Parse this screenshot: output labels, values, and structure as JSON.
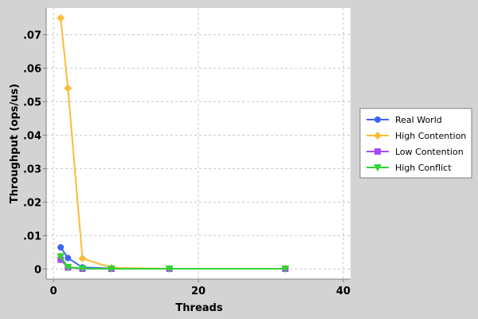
{
  "chart_data": {
    "type": "line",
    "title": "",
    "xlabel": "Threads",
    "ylabel": "Throughput (ops/us)",
    "xlim": [
      -1,
      41
    ],
    "ylim": [
      -0.003,
      0.078
    ],
    "x_ticks": [
      0,
      20,
      40
    ],
    "x_tick_labels": [
      "0",
      "20",
      "40"
    ],
    "y_ticks": [
      0,
      0.01,
      0.02,
      0.03,
      0.04,
      0.05,
      0.06,
      0.07
    ],
    "y_tick_labels": [
      "0",
      ".01",
      ".02",
      ".03",
      ".04",
      ".05",
      ".06",
      ".07"
    ],
    "grid": true,
    "legend_position": "right",
    "x": [
      1,
      2,
      4,
      8,
      16,
      32
    ],
    "series": [
      {
        "name": "Real World",
        "color": "#3d64f5",
        "marker": "circle",
        "values": [
          0.0065,
          0.0033,
          0.0005,
          0.0002,
          0.0001,
          0.0001
        ]
      },
      {
        "name": "High Contention",
        "color": "#fbbc39",
        "marker": "diamond",
        "values": [
          0.075,
          0.054,
          0.0032,
          0.0004,
          0.0001,
          0.0001
        ]
      },
      {
        "name": "Low Contention",
        "color": "#a54cf3",
        "marker": "square",
        "values": [
          0.0028,
          0.0005,
          0.0001,
          0.0001,
          0.0001,
          0.0001
        ]
      },
      {
        "name": "High Conflict",
        "color": "#33d233",
        "marker": "triangle-down",
        "values": [
          0.0038,
          0.0006,
          0.0002,
          0.0001,
          0.0001,
          0.0001
        ]
      }
    ]
  }
}
